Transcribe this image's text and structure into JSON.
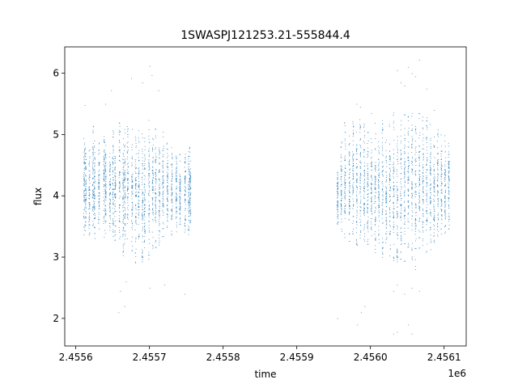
{
  "chart_data": {
    "type": "scatter",
    "title": "1SWASPJ121253.21-555844.4",
    "xlabel": "time",
    "ylabel": "flux",
    "x_offset_label": "1e6",
    "xlim": [
      2455585,
      2456130
    ],
    "ylim": [
      1.55,
      6.43
    ],
    "x_ticks": [
      2.4556,
      2.4557,
      2.4558,
      2.4559,
      2.456,
      2.4561
    ],
    "x_tick_labels": [
      "2.4556",
      "2.4557",
      "2.4558",
      "2.4559",
      "2.4560",
      "2.4561"
    ],
    "y_ticks": [
      2,
      3,
      4,
      5,
      6
    ],
    "y_tick_labels": [
      "2",
      "3",
      "4",
      "5",
      "6"
    ],
    "marker_color": "#1f77b4",
    "grid": false,
    "legend": "none",
    "series": [
      {
        "nights": [
          {
            "x": 2455611,
            "y": [
              3.3,
              5.0
            ]
          },
          {
            "x": 2455613,
            "y": [
              3.4,
              4.8
            ]
          },
          {
            "x": 2455618,
            "y": [
              3.3,
              4.9
            ]
          },
          {
            "x": 2455623,
            "y": [
              3.3,
              5.2
            ]
          },
          {
            "x": 2455625,
            "y": [
              3.3,
              4.9
            ]
          },
          {
            "x": 2455631,
            "y": [
              3.4,
              4.9
            ]
          },
          {
            "x": 2455638,
            "y": [
              3.3,
              5.1
            ]
          },
          {
            "x": 2455640,
            "y": [
              3.2,
              4.9
            ]
          },
          {
            "x": 2455646,
            "y": [
              3.4,
              4.8
            ]
          },
          {
            "x": 2455650,
            "y": [
              3.3,
              5.1
            ]
          },
          {
            "x": 2455653,
            "y": [
              3.2,
              5.0
            ]
          },
          {
            "x": 2455659,
            "y": [
              3.3,
              5.2
            ]
          },
          {
            "x": 2455664,
            "y": [
              3.0,
              5.0
            ]
          },
          {
            "x": 2455666,
            "y": [
              3.2,
              5.1
            ]
          },
          {
            "x": 2455670,
            "y": [
              3.3,
              5.3
            ]
          },
          {
            "x": 2455676,
            "y": [
              3.1,
              5.2
            ]
          },
          {
            "x": 2455681,
            "y": [
              2.9,
              5.0
            ]
          },
          {
            "x": 2455685,
            "y": [
              3.2,
              5.1
            ]
          },
          {
            "x": 2455690,
            "y": [
              2.9,
              5.1
            ]
          },
          {
            "x": 2455693,
            "y": [
              3.1,
              5.0
            ]
          },
          {
            "x": 2455699,
            "y": [
              2.9,
              5.3
            ]
          },
          {
            "x": 2455704,
            "y": [
              3.0,
              5.0
            ]
          },
          {
            "x": 2455708,
            "y": [
              3.1,
              5.1
            ]
          },
          {
            "x": 2455713,
            "y": [
              3.2,
              4.9
            ]
          },
          {
            "x": 2455718,
            "y": [
              3.3,
              5.1
            ]
          },
          {
            "x": 2455724,
            "y": [
              3.3,
              4.9
            ]
          },
          {
            "x": 2455730,
            "y": [
              3.3,
              4.8
            ]
          },
          {
            "x": 2455736,
            "y": [
              3.4,
              4.8
            ]
          },
          {
            "x": 2455741,
            "y": [
              3.5,
              4.7
            ]
          },
          {
            "x": 2455748,
            "y": [
              3.3,
              4.7
            ]
          },
          {
            "x": 2455753,
            "y": [
              3.3,
              4.9
            ]
          },
          {
            "x": 2455755,
            "y": [
              3.4,
              4.8
            ]
          },
          {
            "x": 2455955,
            "y": [
              3.5,
              4.5
            ]
          },
          {
            "x": 2455960,
            "y": [
              3.4,
              4.9
            ]
          },
          {
            "x": 2455965,
            "y": [
              3.3,
              5.2
            ]
          },
          {
            "x": 2455971,
            "y": [
              3.2,
              5.0
            ]
          },
          {
            "x": 2455976,
            "y": [
              3.3,
              5.3
            ]
          },
          {
            "x": 2455981,
            "y": [
              3.1,
              5.1
            ]
          },
          {
            "x": 2455986,
            "y": [
              3.2,
              5.3
            ]
          },
          {
            "x": 2455991,
            "y": [
              3.2,
              5.2
            ]
          },
          {
            "x": 2455996,
            "y": [
              3.1,
              5.1
            ]
          },
          {
            "x": 2456001,
            "y": [
              3.2,
              5.0
            ]
          },
          {
            "x": 2456006,
            "y": [
              3.0,
              5.2
            ]
          },
          {
            "x": 2456011,
            "y": [
              3.2,
              4.9
            ]
          },
          {
            "x": 2456016,
            "y": [
              3.0,
              5.3
            ]
          },
          {
            "x": 2456021,
            "y": [
              3.1,
              5.0
            ]
          },
          {
            "x": 2456026,
            "y": [
              3.0,
              5.2
            ]
          },
          {
            "x": 2456031,
            "y": [
              2.8,
              5.4
            ]
          },
          {
            "x": 2456036,
            "y": [
              2.9,
              5.2
            ]
          },
          {
            "x": 2456041,
            "y": [
              2.9,
              5.3
            ]
          },
          {
            "x": 2456046,
            "y": [
              2.8,
              5.4
            ]
          },
          {
            "x": 2456051,
            "y": [
              3.0,
              5.3
            ]
          },
          {
            "x": 2456056,
            "y": [
              2.9,
              5.5
            ]
          },
          {
            "x": 2456061,
            "y": [
              2.8,
              5.3
            ]
          },
          {
            "x": 2456066,
            "y": [
              3.1,
              5.4
            ]
          },
          {
            "x": 2456071,
            "y": [
              3.0,
              5.3
            ]
          },
          {
            "x": 2456076,
            "y": [
              3.0,
              5.4
            ]
          },
          {
            "x": 2456081,
            "y": [
              3.1,
              5.2
            ]
          },
          {
            "x": 2456086,
            "y": [
              3.2,
              5.0
            ]
          },
          {
            "x": 2456091,
            "y": [
              3.2,
              5.1
            ]
          },
          {
            "x": 2456096,
            "y": [
              3.3,
              5.0
            ]
          },
          {
            "x": 2456101,
            "y": [
              3.3,
              5.0
            ]
          },
          {
            "x": 2456106,
            "y": [
              3.4,
              5.0
            ]
          }
        ],
        "outliers": [
          [
            2455700,
            6.12
          ],
          [
            2455703,
            5.97
          ],
          [
            2455712,
            5.72
          ],
          [
            2455648,
            5.72
          ],
          [
            2455640,
            5.5
          ],
          [
            2455612,
            5.48
          ],
          [
            2455690,
            5.85
          ],
          [
            2455675,
            5.92
          ],
          [
            2455660,
            2.45
          ],
          [
            2455666,
            2.2
          ],
          [
            2455658,
            2.1
          ],
          [
            2455700,
            2.5
          ],
          [
            2455748,
            2.4
          ],
          [
            2455720,
            2.55
          ],
          [
            2455668,
            2.6
          ],
          [
            2455955,
            2.0
          ],
          [
            2455982,
            1.9
          ],
          [
            2455987,
            2.1
          ],
          [
            2455992,
            2.2
          ],
          [
            2456031,
            1.75
          ],
          [
            2456036,
            1.78
          ],
          [
            2456056,
            1.75
          ],
          [
            2456051,
            1.9
          ],
          [
            2456046,
            2.4
          ],
          [
            2456056,
            2.5
          ],
          [
            2456066,
            2.45
          ],
          [
            2456036,
            2.55
          ],
          [
            2456031,
            2.45
          ],
          [
            2456066,
            6.22
          ],
          [
            2456056,
            6.0
          ],
          [
            2456051,
            6.1
          ],
          [
            2456036,
            6.05
          ],
          [
            2456041,
            5.85
          ],
          [
            2456061,
            5.95
          ],
          [
            2456046,
            5.8
          ],
          [
            2456076,
            5.75
          ],
          [
            2456086,
            5.4
          ],
          [
            2455981,
            5.5
          ],
          [
            2455986,
            5.45
          ],
          [
            2456001,
            5.35
          ]
        ]
      }
    ]
  }
}
